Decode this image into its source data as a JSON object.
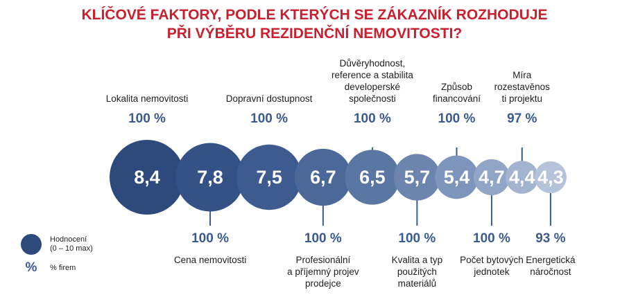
{
  "title": {
    "line1": "KLÍČOVÉ FAKTORY, PODLE KTERÝCH SE ZÁKAZNÍK ROZHODUJE",
    "line2": "PŘI VÝBĚRU REZIDENČNÍ NEMOVITOSTI?"
  },
  "colors": {
    "title": "#c8202f",
    "percent_text": "#3a5a90",
    "leader_line": "#3a5a90"
  },
  "chart_data": {
    "type": "bubble",
    "title": "KLÍČOVÉ FAKTORY, PODLE KTERÝCH SE ZÁKAZNÍK ROZHODUJE PŘI VÝBĚRU REZIDENČNÍ NEMOVITOSTI?",
    "label_font_px": 13.5,
    "items": [
      {
        "label": [
          "Lokalita nemovitosti"
        ],
        "rating": "8,4",
        "rating_value": 8.4,
        "percent": "100 %",
        "percent_value": 100,
        "position": "top",
        "color": "#2e4a7d"
      },
      {
        "label": [
          "Cena nemovitosti"
        ],
        "rating": "7,8",
        "rating_value": 7.8,
        "percent": "100 %",
        "percent_value": 100,
        "position": "bottom",
        "color": "#345285"
      },
      {
        "label": [
          "Dopravní dostupnost"
        ],
        "rating": "7,5",
        "rating_value": 7.5,
        "percent": "100 %",
        "percent_value": 100,
        "position": "top",
        "color": "#3d5b8e"
      },
      {
        "label": [
          "Profesionální",
          "a příjemný projev",
          "prodejce"
        ],
        "rating": "6,7",
        "rating_value": 6.7,
        "percent": "100 %",
        "percent_value": 100,
        "position": "bottom",
        "color": "#4b6898"
      },
      {
        "label": [
          "Důvěryhodnost,",
          "reference a stabilita",
          "developerské",
          "společnosti"
        ],
        "rating": "6,5",
        "rating_value": 6.5,
        "percent": "100 %",
        "percent_value": 100,
        "position": "top",
        "color": "#5a76a3"
      },
      {
        "label": [
          "Kvalita a typ",
          "použitých",
          "materiálů"
        ],
        "rating": "5,7",
        "rating_value": 5.7,
        "percent": "100 %",
        "percent_value": 100,
        "position": "bottom",
        "color": "#6b85af"
      },
      {
        "label": [
          "Způsob",
          "financování"
        ],
        "rating": "5,4",
        "rating_value": 5.4,
        "percent": "100 %",
        "percent_value": 100,
        "position": "top",
        "color": "#7e95bb"
      },
      {
        "label": [
          "Počet bytových",
          "jednotek"
        ],
        "rating": "4,7",
        "rating_value": 4.7,
        "percent": "100 %",
        "percent_value": 100,
        "position": "bottom",
        "color": "#91a5c6"
      },
      {
        "label": [
          "Míra",
          "rozestavěnos",
          "ti projektu"
        ],
        "rating": "4,4",
        "rating_value": 4.4,
        "percent": "97 %",
        "percent_value": 97,
        "position": "top",
        "color": "#a3b4d0"
      },
      {
        "label": [
          "Energetická",
          "náročnost"
        ],
        "rating": "4,3",
        "rating_value": 4.3,
        "percent": "93 %",
        "percent_value": 93,
        "position": "bottom",
        "color": "#b5c3da"
      }
    ]
  },
  "legend": {
    "bubble_label_line1": "Hodnocení",
    "bubble_label_line2": "(0 – 10 max)",
    "percent_symbol": "%",
    "percent_label": "% firem"
  }
}
